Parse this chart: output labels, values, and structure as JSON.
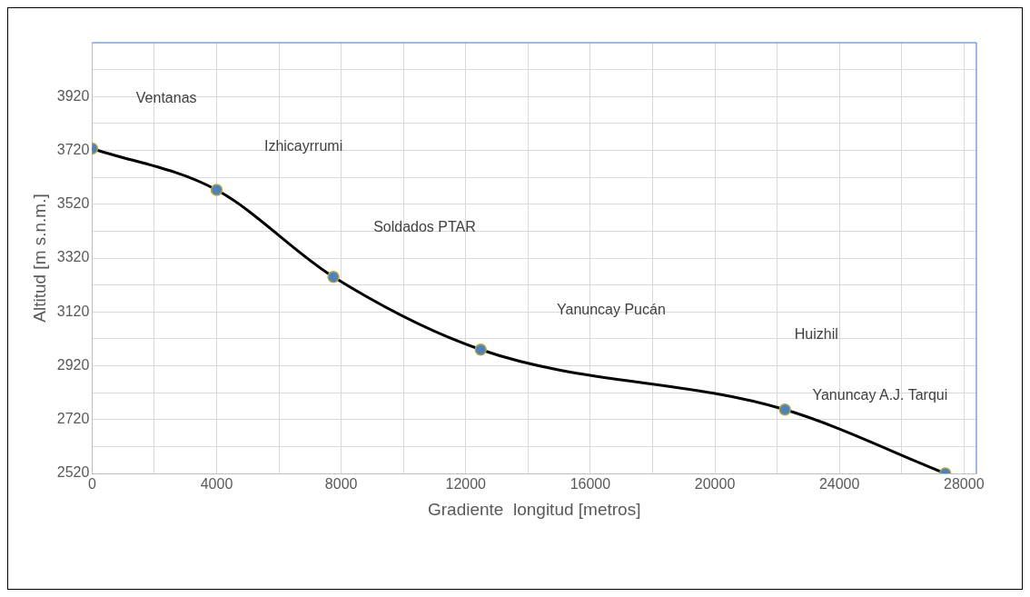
{
  "chart_data": {
    "type": "line",
    "xlabel": "Gradiente  longitud [metros]",
    "ylabel": "Altitud [m s.n.m.]",
    "x": [
      0,
      4000,
      7750,
      12480,
      22250,
      27400
    ],
    "series": [
      {
        "color": "#000000",
        "values": [
          3727,
          3573,
          3250,
          2980,
          2757,
          2520
        ]
      }
    ],
    "marker": "circle",
    "line_style": "solid",
    "grid": true,
    "legend": false,
    "xlim": [
      0,
      28400
    ],
    "xticks": [
      0,
      {
        "value": 2000,
        "label": null
      },
      4000,
      {
        "value": 6000,
        "label": null
      },
      8000,
      {
        "value": 10000,
        "label": null
      },
      12000,
      {
        "value": 14000,
        "label": null
      },
      16000,
      {
        "value": 18000,
        "label": null
      },
      20000,
      {
        "value": 22000,
        "label": null
      },
      24000,
      {
        "value": 26000,
        "label": null
      },
      28000
    ],
    "ylim": [
      2520,
      4120
    ],
    "yticks": [
      2520,
      {
        "value": 2620,
        "label": null
      },
      2720,
      {
        "value": 2820,
        "label": null
      },
      2920,
      {
        "value": 3020,
        "label": null
      },
      3120,
      {
        "value": 3220,
        "label": null
      },
      3320,
      {
        "value": 3420,
        "label": null
      },
      3520,
      {
        "value": 3620,
        "label": null
      },
      3720,
      {
        "value": 3820,
        "label": null
      },
      3920,
      {
        "value": 4020,
        "label": null
      }
    ],
    "annotations": [
      "Ventanas",
      "Izhicayrrumi",
      "Soldados PTAR",
      "Yanuncay Pucán",
      "Huizhil",
      "Yanuncay A.J. Tarqui"
    ]
  }
}
